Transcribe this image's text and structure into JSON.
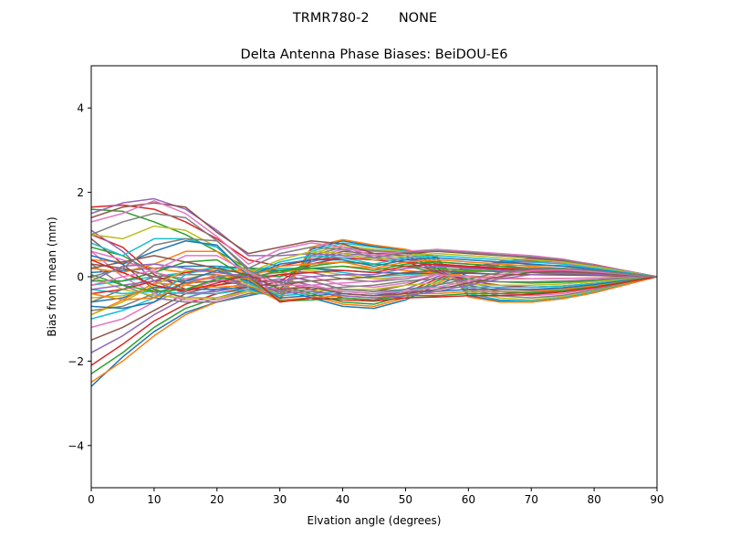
{
  "figure": {
    "suptitle": "TRMR780-2       NONE"
  },
  "chart_data": {
    "type": "line",
    "title": "Delta Antenna Phase Biases: BeiDOU-E6",
    "xlabel": "Elvation angle (degrees)",
    "ylabel": "Bias from mean (mm)",
    "xlim": [
      0,
      90
    ],
    "ylim": [
      -5,
      5
    ],
    "xticks": [
      "0",
      "10",
      "20",
      "30",
      "40",
      "50",
      "60",
      "70",
      "80",
      "90"
    ],
    "yticks": [
      "−4",
      "−2",
      "0",
      "2",
      "4"
    ],
    "grid": false,
    "legend": "none",
    "x": [
      0,
      5,
      10,
      15,
      20,
      25,
      30,
      35,
      40,
      45,
      50,
      55,
      60,
      65,
      70,
      75,
      80,
      85,
      90
    ],
    "colors": [
      "#1f77b4",
      "#ff7f0e",
      "#2ca02c",
      "#d62728",
      "#9467bd",
      "#8c564b",
      "#e377c2",
      "#7f7f7f",
      "#bcbd22",
      "#17becf"
    ],
    "series": [
      {
        "values": [
          -2.6,
          -1.9,
          -1.3,
          -0.85,
          -0.6,
          -0.45,
          -0.3,
          -0.5,
          -0.7,
          -0.75,
          -0.55,
          -0.2,
          0.1,
          0.3,
          0.38,
          0.35,
          0.25,
          0.12,
          0.0
        ]
      },
      {
        "values": [
          -2.5,
          -2.0,
          -1.4,
          -0.9,
          -0.6,
          -0.4,
          -0.25,
          -0.45,
          -0.65,
          -0.7,
          -0.5,
          -0.15,
          0.15,
          0.32,
          0.4,
          0.38,
          0.27,
          0.13,
          0.0
        ]
      },
      {
        "values": [
          -2.3,
          -1.8,
          -1.2,
          -0.75,
          -0.5,
          -0.35,
          -0.2,
          -0.4,
          -0.6,
          -0.65,
          -0.45,
          -0.1,
          0.18,
          0.35,
          0.42,
          0.4,
          0.28,
          0.14,
          0.0
        ]
      },
      {
        "values": [
          -2.1,
          -1.6,
          -1.05,
          -0.65,
          -0.4,
          -0.25,
          -0.12,
          -0.3,
          -0.5,
          -0.55,
          -0.38,
          -0.05,
          0.2,
          0.36,
          0.43,
          0.41,
          0.29,
          0.14,
          0.0
        ]
      },
      {
        "values": [
          -1.8,
          -1.4,
          -0.9,
          -0.5,
          -0.3,
          -0.15,
          -0.05,
          -0.2,
          -0.4,
          -0.45,
          -0.3,
          0.0,
          0.22,
          0.35,
          0.42,
          0.4,
          0.28,
          0.14,
          0.0
        ]
      },
      {
        "values": [
          -1.5,
          -1.2,
          -0.8,
          -0.4,
          -0.2,
          -0.05,
          0.05,
          -0.1,
          -0.3,
          -0.35,
          -0.2,
          0.05,
          0.22,
          0.33,
          0.38,
          0.36,
          0.26,
          0.13,
          0.0
        ]
      },
      {
        "values": [
          -1.2,
          -1.0,
          -0.6,
          -0.3,
          -0.1,
          0.0,
          0.1,
          0.0,
          -0.2,
          -0.25,
          -0.15,
          0.05,
          0.2,
          0.3,
          0.34,
          0.32,
          0.23,
          0.11,
          0.0
        ]
      },
      {
        "values": [
          -0.8,
          -0.7,
          -0.4,
          -0.15,
          0.0,
          0.08,
          0.15,
          0.1,
          -0.05,
          -0.12,
          -0.05,
          0.08,
          0.18,
          0.25,
          0.28,
          0.26,
          0.19,
          0.1,
          0.0
        ]
      },
      {
        "values": [
          -0.5,
          -0.45,
          -0.3,
          -0.05,
          0.1,
          0.15,
          0.2,
          0.15,
          0.05,
          -0.05,
          0.0,
          0.1,
          0.15,
          0.2,
          0.22,
          0.2,
          0.15,
          0.07,
          0.0
        ]
      },
      {
        "values": [
          -0.2,
          -0.1,
          0.0,
          0.1,
          0.2,
          0.2,
          0.2,
          0.2,
          0.1,
          0.0,
          0.05,
          0.1,
          0.12,
          0.14,
          0.15,
          0.13,
          0.1,
          0.05,
          0.0
        ]
      },
      {
        "values": [
          0.1,
          0.15,
          0.2,
          0.25,
          0.25,
          0.2,
          0.15,
          0.2,
          0.15,
          0.1,
          0.08,
          0.08,
          0.08,
          0.06,
          0.05,
          0.05,
          0.04,
          0.02,
          0.0
        ]
      },
      {
        "values": [
          0.4,
          0.35,
          0.2,
          0.1,
          0.15,
          0.15,
          0.1,
          0.2,
          0.25,
          0.2,
          0.15,
          0.08,
          0.02,
          -0.02,
          -0.05,
          -0.04,
          -0.03,
          -0.01,
          0.0
        ]
      },
      {
        "values": [
          0.7,
          0.5,
          0.1,
          -0.1,
          0.0,
          0.05,
          0.0,
          0.25,
          0.35,
          0.3,
          0.25,
          0.1,
          -0.05,
          -0.12,
          -0.15,
          -0.13,
          -0.1,
          -0.05,
          0.0
        ]
      },
      {
        "values": [
          1.0,
          0.7,
          0.05,
          -0.3,
          -0.2,
          -0.1,
          -0.1,
          0.3,
          0.45,
          0.4,
          0.35,
          0.12,
          -0.1,
          -0.2,
          -0.25,
          -0.22,
          -0.16,
          -0.08,
          0.0
        ]
      },
      {
        "values": [
          1.1,
          0.6,
          -0.1,
          -0.4,
          -0.35,
          -0.2,
          -0.2,
          0.35,
          0.55,
          0.5,
          0.45,
          0.15,
          -0.15,
          -0.28,
          -0.32,
          -0.28,
          -0.2,
          -0.1,
          0.0
        ]
      },
      {
        "values": [
          0.9,
          0.3,
          -0.3,
          -0.5,
          -0.5,
          -0.3,
          -0.3,
          0.4,
          0.6,
          0.55,
          0.5,
          0.2,
          -0.2,
          -0.35,
          -0.4,
          -0.35,
          -0.25,
          -0.12,
          0.0
        ]
      },
      {
        "values": [
          0.6,
          0.0,
          -0.4,
          -0.55,
          -0.55,
          -0.35,
          -0.35,
          0.45,
          0.65,
          0.6,
          0.55,
          0.25,
          -0.25,
          -0.4,
          -0.45,
          -0.4,
          -0.28,
          -0.14,
          0.0
        ]
      },
      {
        "values": [
          0.3,
          -0.2,
          -0.5,
          -0.6,
          -0.6,
          -0.4,
          -0.4,
          0.5,
          0.7,
          0.62,
          0.58,
          0.3,
          -0.3,
          -0.45,
          -0.5,
          -0.44,
          -0.31,
          -0.15,
          0.0
        ]
      },
      {
        "values": [
          0.0,
          -0.3,
          -0.45,
          -0.5,
          -0.5,
          -0.35,
          -0.45,
          0.55,
          0.75,
          0.65,
          0.6,
          0.35,
          -0.35,
          -0.5,
          -0.55,
          -0.47,
          -0.34,
          -0.17,
          0.0
        ]
      },
      {
        "values": [
          -0.3,
          -0.4,
          -0.35,
          -0.4,
          -0.4,
          -0.3,
          -0.5,
          0.6,
          0.8,
          0.7,
          0.62,
          0.4,
          -0.4,
          -0.55,
          -0.58,
          -0.5,
          -0.36,
          -0.18,
          0.0
        ]
      },
      {
        "values": [
          -0.6,
          -0.5,
          -0.25,
          -0.3,
          -0.3,
          -0.25,
          -0.55,
          0.65,
          0.85,
          0.72,
          0.64,
          0.45,
          -0.45,
          -0.58,
          -0.6,
          -0.52,
          -0.38,
          -0.19,
          0.0
        ]
      },
      {
        "values": [
          -0.9,
          -0.55,
          -0.15,
          -0.2,
          -0.25,
          -0.2,
          -0.58,
          0.7,
          0.88,
          0.75,
          0.65,
          0.48,
          -0.48,
          -0.6,
          -0.6,
          -0.52,
          -0.38,
          -0.19,
          0.0
        ]
      },
      {
        "values": [
          1.6,
          1.55,
          1.3,
          1.0,
          0.6,
          0.2,
          0.1,
          0.3,
          0.35,
          0.3,
          0.25,
          0.2,
          0.15,
          0.12,
          0.1,
          0.08,
          0.06,
          0.03,
          0.0
        ]
      },
      {
        "values": [
          1.65,
          1.7,
          1.6,
          1.3,
          0.9,
          0.4,
          0.25,
          0.4,
          0.45,
          0.4,
          0.35,
          0.28,
          0.22,
          0.18,
          0.15,
          0.12,
          0.08,
          0.04,
          0.0
        ]
      },
      {
        "values": [
          1.5,
          1.75,
          1.85,
          1.6,
          1.1,
          0.5,
          0.5,
          0.55,
          0.5,
          0.45,
          0.4,
          0.35,
          0.3,
          0.25,
          0.2,
          0.16,
          0.11,
          0.05,
          0.0
        ]
      },
      {
        "values": [
          1.4,
          1.65,
          1.75,
          1.65,
          1.05,
          0.55,
          0.7,
          0.85,
          0.78,
          0.55,
          0.55,
          0.6,
          0.55,
          0.5,
          0.45,
          0.38,
          0.25,
          0.12,
          0.0
        ]
      },
      {
        "values": [
          1.3,
          1.5,
          1.8,
          1.5,
          0.95,
          0.3,
          0.65,
          0.8,
          0.7,
          0.5,
          0.6,
          0.65,
          0.6,
          0.55,
          0.5,
          0.42,
          0.28,
          0.14,
          0.0
        ]
      },
      {
        "values": [
          1.0,
          1.3,
          1.5,
          1.4,
          0.85,
          0.2,
          0.55,
          0.7,
          0.65,
          0.45,
          0.58,
          0.62,
          0.58,
          0.52,
          0.47,
          0.4,
          0.27,
          0.13,
          0.0
        ]
      },
      {
        "values": [
          1.0,
          0.9,
          1.2,
          1.1,
          0.7,
          0.1,
          0.4,
          0.6,
          0.55,
          0.4,
          0.5,
          0.55,
          0.5,
          0.45,
          0.4,
          0.35,
          0.24,
          0.12,
          0.0
        ]
      },
      {
        "values": [
          0.8,
          0.5,
          0.9,
          0.9,
          0.7,
          0.05,
          0.35,
          0.5,
          0.45,
          0.3,
          0.45,
          0.5,
          0.45,
          0.4,
          0.35,
          0.3,
          0.2,
          0.1,
          0.0
        ]
      },
      {
        "values": [
          0.5,
          0.3,
          0.6,
          0.85,
          0.75,
          0.0,
          0.3,
          0.4,
          0.4,
          0.25,
          0.4,
          0.45,
          0.4,
          0.35,
          0.3,
          0.25,
          0.17,
          0.08,
          0.0
        ]
      },
      {
        "values": [
          0.2,
          0.1,
          0.3,
          0.6,
          0.6,
          0.0,
          0.25,
          0.3,
          0.35,
          0.2,
          0.35,
          0.4,
          0.35,
          0.3,
          0.25,
          0.2,
          0.14,
          0.07,
          0.0
        ]
      },
      {
        "values": [
          -0.1,
          -0.1,
          0.1,
          0.35,
          0.4,
          -0.05,
          0.15,
          0.2,
          0.25,
          0.15,
          0.3,
          0.35,
          0.3,
          0.25,
          0.2,
          0.17,
          0.12,
          0.06,
          0.0
        ]
      },
      {
        "values": [
          -0.4,
          -0.3,
          -0.1,
          0.1,
          0.2,
          -0.1,
          0.05,
          0.1,
          0.15,
          0.1,
          0.25,
          0.3,
          0.25,
          0.2,
          0.17,
          0.14,
          0.1,
          0.05,
          0.0
        ]
      },
      {
        "values": [
          -0.3,
          -0.2,
          -0.1,
          -0.1,
          0.0,
          -0.15,
          -0.1,
          0.0,
          0.05,
          0.05,
          0.2,
          0.25,
          0.2,
          0.15,
          0.12,
          0.1,
          0.07,
          0.03,
          0.0
        ]
      },
      {
        "values": [
          0.3,
          0.2,
          0.0,
          -0.15,
          -0.1,
          -0.2,
          -0.2,
          -0.1,
          -0.05,
          0.0,
          0.1,
          0.15,
          0.1,
          0.05,
          0.05,
          0.04,
          0.03,
          0.01,
          0.0
        ]
      },
      {
        "values": [
          0.6,
          0.4,
          0.1,
          -0.05,
          -0.05,
          -0.2,
          -0.3,
          -0.2,
          -0.15,
          -0.1,
          0.0,
          0.05,
          0.0,
          -0.05,
          -0.05,
          -0.04,
          -0.03,
          -0.01,
          0.0
        ]
      },
      {
        "values": [
          -0.6,
          -0.3,
          0.0,
          0.05,
          0.05,
          -0.25,
          -0.35,
          -0.3,
          -0.25,
          -0.2,
          -0.1,
          -0.05,
          -0.1,
          -0.12,
          -0.12,
          -0.1,
          -0.07,
          -0.03,
          0.0
        ]
      },
      {
        "values": [
          -0.9,
          -0.6,
          -0.2,
          0.15,
          0.2,
          -0.2,
          -0.4,
          -0.35,
          -0.3,
          -0.3,
          -0.2,
          -0.15,
          -0.18,
          -0.2,
          -0.2,
          -0.17,
          -0.12,
          -0.06,
          0.0
        ]
      },
      {
        "values": [
          -1.0,
          -0.8,
          -0.5,
          0.05,
          0.25,
          -0.15,
          -0.45,
          -0.4,
          -0.35,
          -0.4,
          -0.3,
          -0.25,
          -0.25,
          -0.25,
          -0.25,
          -0.22,
          -0.16,
          -0.08,
          0.0
        ]
      },
      {
        "values": [
          -0.7,
          -0.75,
          -0.6,
          -0.1,
          0.15,
          -0.1,
          -0.5,
          -0.45,
          -0.4,
          -0.45,
          -0.35,
          -0.35,
          -0.3,
          -0.3,
          -0.3,
          -0.26,
          -0.19,
          -0.09,
          0.0
        ]
      },
      {
        "values": [
          -0.4,
          -0.55,
          -0.5,
          -0.2,
          0.05,
          -0.05,
          -0.55,
          -0.5,
          -0.45,
          -0.5,
          -0.4,
          -0.4,
          -0.35,
          -0.35,
          -0.35,
          -0.3,
          -0.22,
          -0.11,
          0.0
        ]
      },
      {
        "values": [
          0.05,
          -0.2,
          -0.35,
          -0.3,
          -0.05,
          0.0,
          -0.58,
          -0.55,
          -0.5,
          -0.55,
          -0.45,
          -0.45,
          -0.4,
          -0.4,
          -0.38,
          -0.33,
          -0.24,
          -0.12,
          0.0
        ]
      },
      {
        "values": [
          0.4,
          0.1,
          -0.2,
          -0.35,
          -0.15,
          0.05,
          -0.6,
          -0.5,
          -0.55,
          -0.58,
          -0.5,
          -0.48,
          -0.45,
          -0.45,
          -0.42,
          -0.36,
          -0.26,
          -0.13,
          0.0
        ]
      },
      {
        "values": [
          -0.1,
          0.25,
          0.3,
          0.2,
          0.1,
          0.0,
          -0.4,
          -0.35,
          -0.45,
          -0.5,
          -0.45,
          -0.35,
          -0.2,
          -0.05,
          0.05,
          0.08,
          0.06,
          0.03,
          0.0
        ]
      },
      {
        "values": [
          0.2,
          0.35,
          0.5,
          0.35,
          0.2,
          0.05,
          -0.3,
          -0.25,
          -0.4,
          -0.45,
          -0.4,
          -0.3,
          -0.15,
          0.0,
          0.1,
          0.12,
          0.09,
          0.04,
          0.0
        ]
      },
      {
        "values": [
          -0.2,
          0.0,
          0.15,
          0.5,
          0.5,
          0.1,
          -0.2,
          -0.2,
          -0.35,
          -0.4,
          -0.35,
          -0.25,
          -0.1,
          0.05,
          0.15,
          0.16,
          0.12,
          0.06,
          0.0
        ]
      },
      {
        "values": [
          0.0,
          0.2,
          0.75,
          0.9,
          0.85,
          0.15,
          -0.15,
          -0.1,
          -0.3,
          -0.35,
          -0.3,
          -0.2,
          -0.05,
          0.1,
          0.2,
          0.2,
          0.15,
          0.07,
          0.0
        ]
      }
    ]
  }
}
